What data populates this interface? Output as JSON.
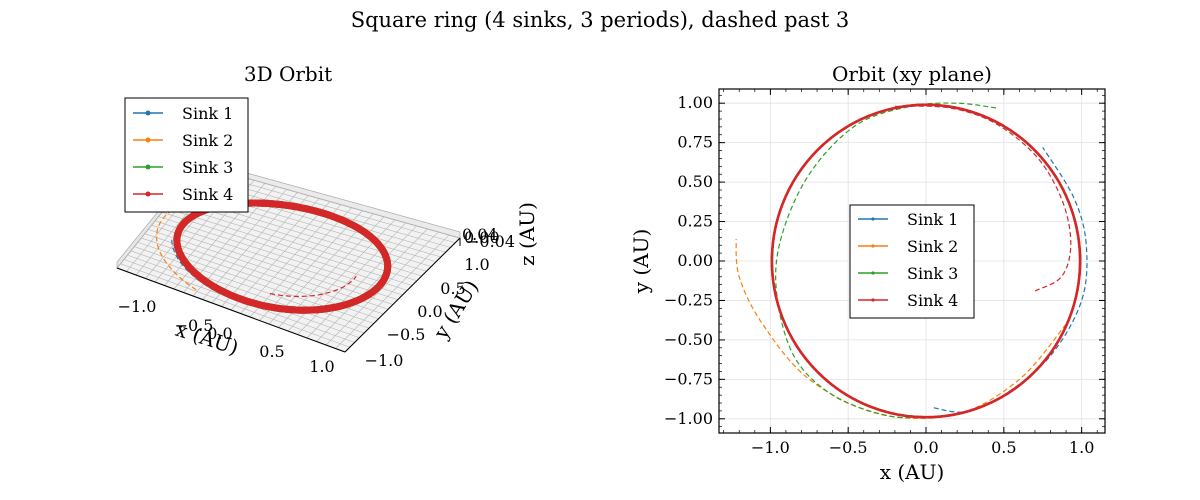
{
  "figure": {
    "suptitle": "Square ring (4 sinks, 3 periods), dashed past 3"
  },
  "chart_data": [
    {
      "type": "line",
      "projection": "3d",
      "title": "3D Orbit",
      "xlabel": "x (AU)",
      "ylabel": "y (AU)",
      "zlabel": "z (AU)",
      "xticks": [
        "−1.0",
        "−0.5",
        "0.0",
        "0.5",
        "1.0"
      ],
      "yticks": [
        "−1.0",
        "−0.5",
        "0.0",
        "0.5",
        "1.0"
      ],
      "zticks": [
        "−0.04",
        "0.00",
        "0.04"
      ],
      "xlim": [
        -1.25,
        1.25
      ],
      "ylim": [
        -1.25,
        1.25
      ],
      "zlim": [
        -0.05,
        0.05
      ],
      "grid": true,
      "legend_position": "upper-left",
      "series": [
        {
          "name": "Sink 1",
          "color": "#1f77b4",
          "orbit_radius": 1.0,
          "dashed_tail": {
            "from_deg": 200,
            "to_deg": 275,
            "radius": 1.05
          }
        },
        {
          "name": "Sink 2",
          "color": "#ff7f0e",
          "orbit_radius": 1.0,
          "dashed_tail": {
            "from_deg": 170,
            "to_deg": 250,
            "radius": 1.2
          }
        },
        {
          "name": "Sink 3",
          "color": "#2ca02c",
          "orbit_radius": 1.0,
          "dashed_tail": {
            "from_deg": 25,
            "to_deg": 180,
            "radius": 0.98
          }
        },
        {
          "name": "Sink 4",
          "color": "#d62728",
          "orbit_radius": 1.0,
          "dashed_tail": {
            "from_deg": -75,
            "to_deg": 5,
            "radius": 0.75
          }
        }
      ]
    },
    {
      "type": "line",
      "title": "Orbit (xy plane)",
      "xlabel": "x (AU)",
      "ylabel": "y (AU)",
      "xlim": [
        -1.33,
        1.15
      ],
      "ylim": [
        -1.09,
        1.09
      ],
      "xticks": [
        -1.0,
        -0.5,
        0.0,
        0.5,
        1.0
      ],
      "xtick_labels": [
        "−1.0",
        "−0.5",
        "0.0",
        "0.5",
        "1.0"
      ],
      "yticks": [
        1.0,
        0.75,
        0.5,
        0.25,
        0.0,
        -0.25,
        -0.5,
        -0.75,
        -1.0
      ],
      "ytick_labels": [
        "1.00",
        "0.75",
        "0.50",
        "0.25",
        "0.00",
        "−0.25",
        "−0.50",
        "−0.75",
        "−1.00"
      ],
      "grid": true,
      "legend_position": "center",
      "series": [
        {
          "name": "Sink 1",
          "color": "#1f77b4",
          "solid": {
            "cx": 0.0,
            "cy": 0.0,
            "r": 0.99
          },
          "dashed": [
            [
              0.05,
              -0.93
            ],
            [
              0.25,
              -0.955
            ],
            [
              0.5,
              -0.85
            ],
            [
              0.8,
              -0.6
            ],
            [
              1.0,
              -0.25
            ],
            [
              1.03,
              0.1
            ],
            [
              0.95,
              0.4
            ],
            [
              0.75,
              0.72
            ]
          ]
        },
        {
          "name": "Sink 2",
          "color": "#ff7f0e",
          "solid": {
            "cx": 0.0,
            "cy": 0.0,
            "r": 0.99
          },
          "dashed": [
            [
              0.9,
              -0.4
            ],
            [
              0.6,
              -0.75
            ],
            [
              0.2,
              -0.97
            ],
            [
              -0.3,
              -0.97
            ],
            [
              -0.75,
              -0.75
            ],
            [
              -1.05,
              -0.4
            ],
            [
              -1.2,
              -0.1
            ],
            [
              -1.22,
              0.14
            ]
          ]
        },
        {
          "name": "Sink 3",
          "color": "#2ca02c",
          "solid": {
            "cx": 0.0,
            "cy": 0.0,
            "r": 0.99
          },
          "dashed": [
            [
              0.45,
              0.97
            ],
            [
              0.2,
              1.0
            ],
            [
              -0.1,
              0.98
            ],
            [
              -0.45,
              0.86
            ],
            [
              -0.75,
              0.55
            ],
            [
              -0.93,
              0.15
            ],
            [
              -0.96,
              -0.2
            ],
            [
              -0.85,
              -0.6
            ],
            [
              -0.6,
              -0.85
            ],
            [
              -0.25,
              -0.98
            ],
            [
              0.0,
              -0.99
            ]
          ]
        },
        {
          "name": "Sink 4",
          "color": "#d62728",
          "solid": {
            "cx": 0.0,
            "cy": 0.0,
            "r": 0.99
          },
          "dashed": [
            [
              -0.2,
              0.98
            ],
            [
              0.15,
              0.97
            ],
            [
              0.45,
              0.87
            ],
            [
              0.72,
              0.65
            ],
            [
              0.88,
              0.37
            ],
            [
              0.93,
              0.1
            ],
            [
              0.87,
              -0.1
            ],
            [
              0.7,
              -0.19
            ]
          ]
        }
      ]
    }
  ]
}
